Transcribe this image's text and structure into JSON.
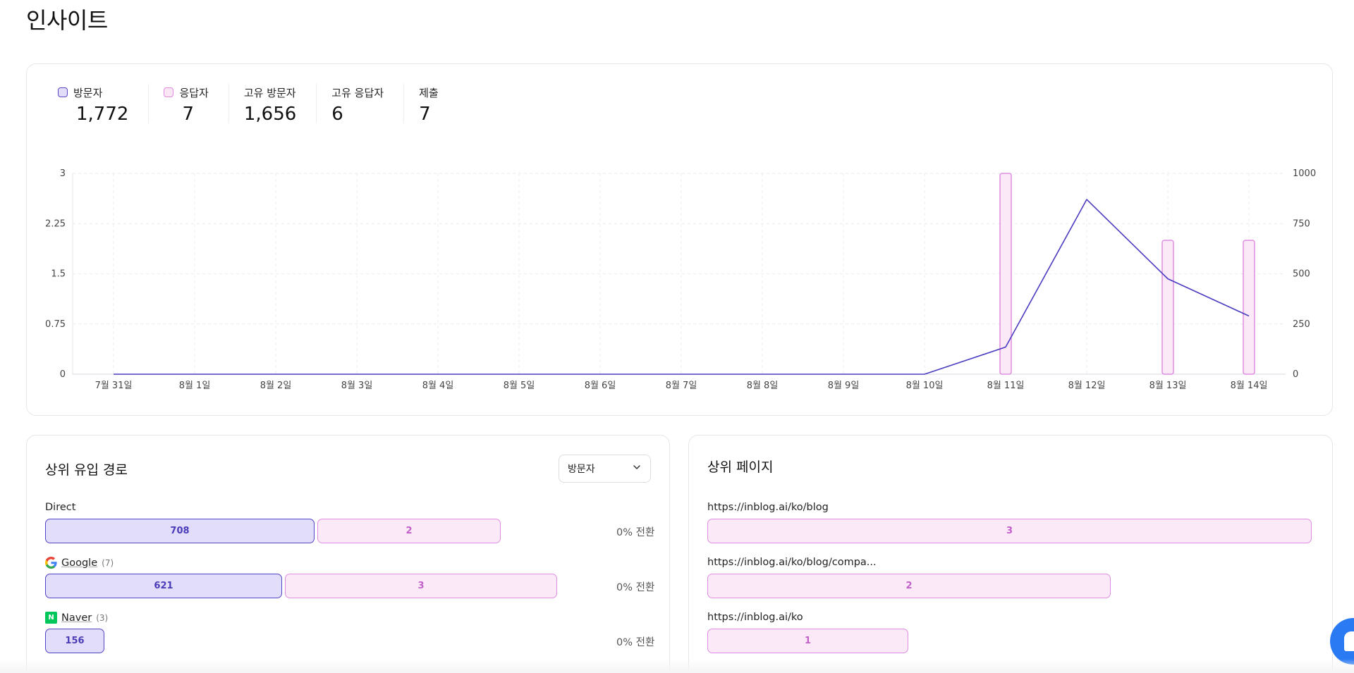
{
  "page": {
    "title": "인사이트"
  },
  "stats": [
    {
      "label": "방문자",
      "value": "1,772",
      "swatch": "visitors"
    },
    {
      "label": "응답자",
      "value": "7",
      "swatch": "responders"
    },
    {
      "label": "고유 방문자",
      "value": "1,656"
    },
    {
      "label": "고유 응답자",
      "value": "6"
    },
    {
      "label": "제출",
      "value": "7"
    }
  ],
  "chart_data": {
    "type": "bar+line",
    "categories": [
      "7월 31일",
      "8월 1일",
      "8월 2일",
      "8월 3일",
      "8월 4일",
      "8월 5일",
      "8월 6일",
      "8월 7일",
      "8월 8일",
      "8월 9일",
      "8월 10일",
      "8월 11일",
      "8월 12일",
      "8월 13일",
      "8월 14일"
    ],
    "left_axis": {
      "ticks": [
        "0",
        "0.75",
        "1.5",
        "2.25",
        "3"
      ],
      "range": [
        0,
        3
      ]
    },
    "right_axis": {
      "ticks": [
        "0",
        "250",
        "500",
        "750",
        "1000"
      ],
      "range": [
        0,
        1000
      ]
    },
    "series": [
      {
        "name": "응답자",
        "type": "bar",
        "axis": "left",
        "color": "#e08ae0",
        "values": [
          0,
          0,
          0,
          0,
          0,
          0,
          0,
          0,
          0,
          0,
          0,
          3,
          0,
          2,
          2
        ]
      },
      {
        "name": "방문자",
        "type": "line",
        "axis": "right",
        "color": "#4a3bc0",
        "values": [
          0,
          0,
          0,
          0,
          0,
          0,
          0,
          0,
          0,
          0,
          0,
          135,
          870,
          475,
          290
        ]
      }
    ],
    "grid": true
  },
  "referrers": {
    "title": "상위 유입 경로",
    "dropdown": {
      "selected": "방문자"
    },
    "rows": [
      {
        "label": "Direct",
        "count": "",
        "icon": "",
        "visitors": "708",
        "visitors_share": 0.455,
        "responders": "2",
        "responders_share": 0.31,
        "conversion": "0% 전환"
      },
      {
        "label": "Google",
        "count": "(7)",
        "icon": "google-icon",
        "visitors": "621",
        "visitors_share": 0.4,
        "responders": "3",
        "responders_share": 0.46,
        "conversion": "0% 전환"
      },
      {
        "label": "Naver",
        "count": "(3)",
        "icon": "naver-icon",
        "visitors": "156",
        "visitors_share": 0.1,
        "responders": "",
        "responders_share": 0,
        "conversion": "0% 전환"
      }
    ]
  },
  "top_pages": {
    "title": "상위 페이지",
    "rows": [
      {
        "url": "https://inblog.ai/ko/blog",
        "value": "3",
        "share": 1.0
      },
      {
        "url": "https://inblog.ai/ko/blog/compa...",
        "value": "2",
        "share": 0.667
      },
      {
        "url": "https://inblog.ai/ko",
        "value": "1",
        "share": 0.333
      }
    ]
  },
  "colors": {
    "visitors_fill": "#e1ddfa",
    "visitors_stroke": "#5244c6",
    "responders_fill": "#fbe9f8",
    "responders_stroke": "#de8ee0",
    "fab": "#2a7af3"
  }
}
